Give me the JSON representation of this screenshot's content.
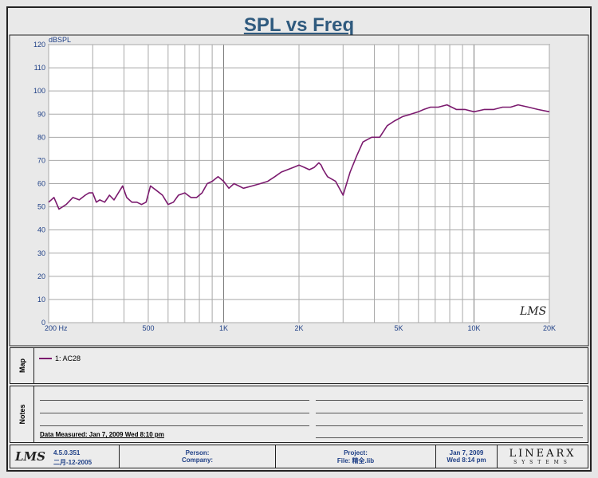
{
  "page_title": "SPL vs Freq",
  "chart_data": {
    "type": "line",
    "title": "SPL vs Freq",
    "ylabel": "dBSPL",
    "xlabel": "",
    "x_scale": "log",
    "xlim": [
      200,
      20000
    ],
    "ylim": [
      0,
      120
    ],
    "y_ticks": [
      0,
      10,
      20,
      30,
      40,
      50,
      60,
      70,
      80,
      90,
      100,
      110,
      120
    ],
    "x_tick_labels": [
      {
        "value": 200,
        "label": "200  Hz"
      },
      {
        "value": 500,
        "label": "500"
      },
      {
        "value": 1000,
        "label": "1K"
      },
      {
        "value": 2000,
        "label": "2K"
      },
      {
        "value": 5000,
        "label": "5K"
      },
      {
        "value": 10000,
        "label": "10K"
      },
      {
        "value": 20000,
        "label": "20K"
      }
    ],
    "grid": true,
    "series": [
      {
        "name": "1: AC28",
        "color": "#7b1a6e",
        "x": [
          200,
          210,
          220,
          235,
          250,
          265,
          280,
          290,
          300,
          310,
          320,
          335,
          350,
          365,
          380,
          395,
          410,
          430,
          450,
          470,
          490,
          510,
          540,
          570,
          600,
          630,
          660,
          700,
          740,
          780,
          820,
          860,
          900,
          950,
          1000,
          1050,
          1100,
          1150,
          1200,
          1300,
          1400,
          1500,
          1600,
          1700,
          1800,
          1900,
          2000,
          2100,
          2200,
          2300,
          2400,
          2450,
          2500,
          2600,
          2800,
          3000,
          3200,
          3400,
          3600,
          3900,
          4200,
          4500,
          4800,
          5200,
          5600,
          6000,
          6300,
          6700,
          7200,
          7800,
          8500,
          9200,
          10000,
          11000,
          12000,
          13000,
          14000,
          15000,
          16500,
          18000,
          20000
        ],
        "y": [
          52,
          54,
          49,
          51,
          54,
          53,
          55,
          56,
          56,
          52,
          53,
          52,
          55,
          53,
          56,
          59,
          54,
          52,
          52,
          51,
          52,
          59,
          57,
          55,
          51,
          52,
          55,
          56,
          54,
          54,
          56,
          60,
          61,
          63,
          61,
          58,
          60,
          59,
          58,
          59,
          60,
          61,
          63,
          65,
          66,
          67,
          68,
          67,
          66,
          67,
          69,
          68,
          66,
          63,
          61,
          55,
          65,
          72,
          78,
          80,
          80,
          85,
          87,
          89,
          90,
          91,
          92,
          93,
          93,
          94,
          92,
          92,
          91,
          92,
          92,
          93,
          93,
          94,
          93,
          92,
          91
        ]
      }
    ]
  },
  "map_panel": {
    "label": "Map",
    "legend_entry": "1: AC28",
    "legend_color": "#7b1a6e"
  },
  "notes_panel": {
    "label": "Notes",
    "measured": "Data Measured: Jan  7, 2009  Wed  8:10 pm"
  },
  "watermark": "LMS",
  "footer": {
    "logo": "LMS",
    "version": "4.5.0.351",
    "build_date": "二月-12-2005",
    "person_label": "Person:",
    "company_label": "Company:",
    "project_label": "Project:",
    "file_label": "File: 精全.lib",
    "date": "Jan  7, 2009",
    "time": "Wed  8:14 pm",
    "brand": "LINEARX",
    "brand_sub": "SYSTEMS"
  }
}
